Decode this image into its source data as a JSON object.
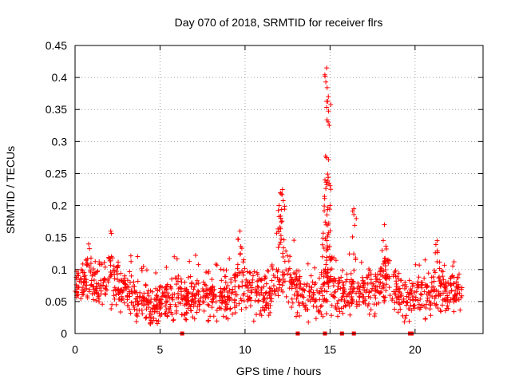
{
  "chart_data": {
    "type": "scatter",
    "title": "Day 070 of 2018, SRMTID for receiver flrs",
    "xlabel": "GPS time / hours",
    "ylabel": "SRMTID / TECUs",
    "xlim": [
      0,
      24
    ],
    "ylim": [
      0,
      0.45
    ],
    "grid": true,
    "marker": "+",
    "color": "#ff0000",
    "x_ticks": [
      0,
      5,
      10,
      15,
      20
    ],
    "x_tick_labels": [
      "0",
      "5",
      "10",
      "15",
      "20"
    ],
    "y_ticks": [
      0,
      0.05,
      0.1,
      0.15,
      0.2,
      0.25,
      0.3,
      0.35,
      0.4,
      0.45
    ],
    "y_tick_labels": [
      "0",
      "0.05",
      "0.1",
      "0.15",
      "0.2",
      "0.25",
      "0.3",
      "0.35",
      "0.4",
      "0.45"
    ],
    "series": [
      {
        "name": "SRMTID",
        "profile_hours": [
          0,
          0.5,
          1,
          1.5,
          2,
          2.5,
          3,
          3.5,
          4,
          4.5,
          5,
          5.5,
          6,
          6.5,
          7,
          7.5,
          8,
          8.5,
          9,
          9.5,
          10,
          10.5,
          11,
          11.5,
          12,
          12.5,
          13,
          13.5,
          14,
          14.5,
          15,
          15.5,
          16,
          16.5,
          17,
          17.5,
          18,
          18.5,
          19,
          19.5,
          20,
          20.5,
          21,
          21.5,
          22,
          22.5,
          22.8
        ],
        "profile_mean": [
          0.08,
          0.085,
          0.075,
          0.075,
          0.08,
          0.075,
          0.065,
          0.06,
          0.05,
          0.045,
          0.045,
          0.05,
          0.055,
          0.055,
          0.055,
          0.055,
          0.055,
          0.06,
          0.06,
          0.065,
          0.07,
          0.065,
          0.055,
          0.06,
          0.085,
          0.09,
          0.065,
          0.06,
          0.06,
          0.065,
          0.075,
          0.065,
          0.065,
          0.07,
          0.065,
          0.065,
          0.08,
          0.085,
          0.065,
          0.055,
          0.055,
          0.055,
          0.06,
          0.065,
          0.065,
          0.06,
          0.055
        ],
        "peaks": [
          {
            "x": 0.8,
            "y": 0.14
          },
          {
            "x": 2.1,
            "y": 0.16
          },
          {
            "x": 9.7,
            "y": 0.16
          },
          {
            "x": 12.0,
            "y": 0.2
          },
          {
            "x": 12.2,
            "y": 0.225
          },
          {
            "x": 14.7,
            "y": 0.24
          },
          {
            "x": 14.8,
            "y": 0.415
          },
          {
            "x": 14.9,
            "y": 0.37
          },
          {
            "x": 15.0,
            "y": 0.2
          },
          {
            "x": 16.4,
            "y": 0.195
          },
          {
            "x": 18.2,
            "y": 0.17
          },
          {
            "x": 21.3,
            "y": 0.145
          }
        ],
        "zero_markers": [
          6.3,
          13.1,
          14.7,
          15.7,
          16.4,
          19.7,
          19.8
        ]
      }
    ]
  }
}
